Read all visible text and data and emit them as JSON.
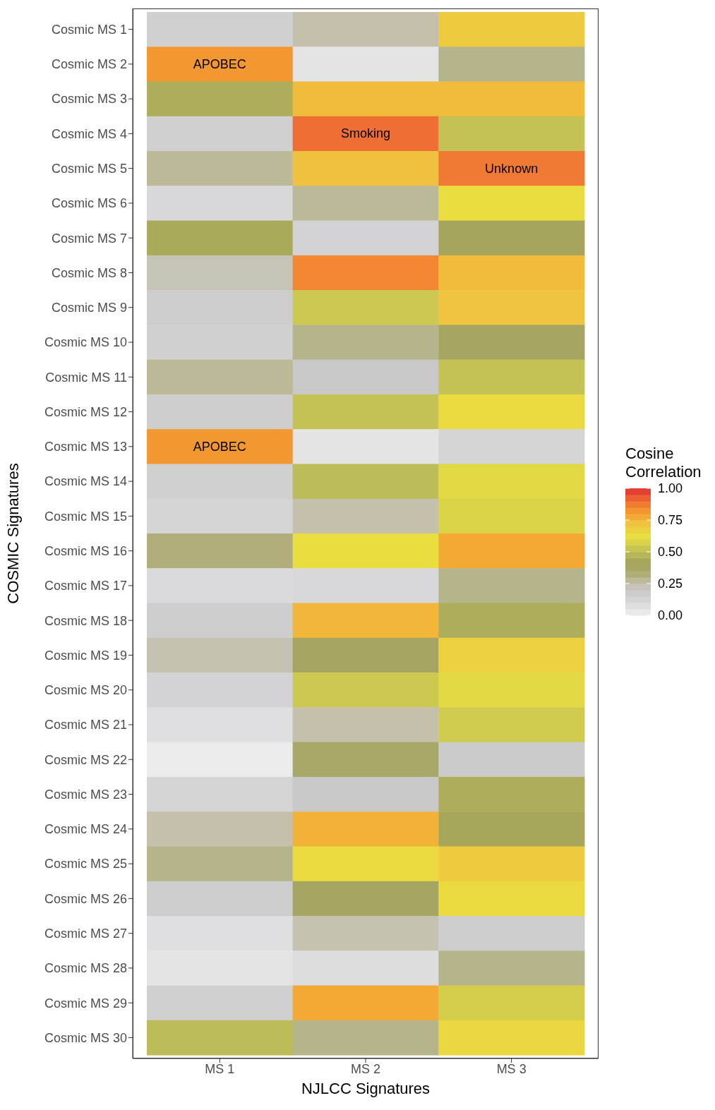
{
  "chart_data": {
    "type": "heatmap",
    "xlabel": "NJLCC Signatures",
    "ylabel": "COSMIC Signatures",
    "clabel": "Cosine Correlation",
    "categories": [
      "MS 1",
      "MS 2",
      "MS 3"
    ],
    "y_categories": [
      "Cosmic MS 1",
      "Cosmic MS 2",
      "Cosmic MS 3",
      "Cosmic MS 4",
      "Cosmic MS 5",
      "Cosmic MS 6",
      "Cosmic MS 7",
      "Cosmic MS 8",
      "Cosmic MS 9",
      "Cosmic MS 10",
      "Cosmic MS 11",
      "Cosmic MS 12",
      "Cosmic MS 13",
      "Cosmic MS 14",
      "Cosmic MS 15",
      "Cosmic MS 16",
      "Cosmic MS 17",
      "Cosmic MS 18",
      "Cosmic MS 19",
      "Cosmic MS 20",
      "Cosmic MS 21",
      "Cosmic MS 22",
      "Cosmic MS 23",
      "Cosmic MS 24",
      "Cosmic MS 25",
      "Cosmic MS 26",
      "Cosmic MS 27",
      "Cosmic MS 28",
      "Cosmic MS 29",
      "Cosmic MS 30"
    ],
    "cells": [
      [
        0.15,
        0.25,
        0.7
      ],
      [
        0.82,
        0.05,
        0.3
      ],
      [
        0.45,
        0.74,
        0.74
      ],
      [
        0.15,
        0.9,
        0.52
      ],
      [
        0.28,
        0.73,
        0.88
      ],
      [
        0.1,
        0.28,
        0.64
      ],
      [
        0.44,
        0.13,
        0.41
      ],
      [
        0.23,
        0.85,
        0.74
      ],
      [
        0.17,
        0.54,
        0.72
      ],
      [
        0.15,
        0.3,
        0.38
      ],
      [
        0.28,
        0.2,
        0.52
      ],
      [
        0.17,
        0.52,
        0.65
      ],
      [
        0.82,
        0.05,
        0.12
      ],
      [
        0.15,
        0.5,
        0.6
      ],
      [
        0.12,
        0.25,
        0.58
      ],
      [
        0.32,
        0.64,
        0.78
      ],
      [
        0.09,
        0.1,
        0.3
      ],
      [
        0.17,
        0.75,
        0.45
      ],
      [
        0.24,
        0.39,
        0.68
      ],
      [
        0.13,
        0.54,
        0.6
      ],
      [
        0.07,
        0.25,
        0.55
      ],
      [
        0.02,
        0.35,
        0.18
      ],
      [
        0.12,
        0.2,
        0.45
      ],
      [
        0.25,
        0.76,
        0.43
      ],
      [
        0.3,
        0.65,
        0.7
      ],
      [
        0.17,
        0.38,
        0.65
      ],
      [
        0.07,
        0.24,
        0.17
      ],
      [
        0.05,
        0.08,
        0.3
      ],
      [
        0.15,
        0.78,
        0.56
      ],
      [
        0.5,
        0.3,
        0.66
      ]
    ],
    "cell_labels": [
      [
        null,
        null,
        null
      ],
      [
        "APOBEC",
        null,
        null
      ],
      [
        null,
        null,
        null
      ],
      [
        null,
        "Smoking",
        null
      ],
      [
        null,
        null,
        "Unknown"
      ],
      [
        null,
        null,
        null
      ],
      [
        null,
        null,
        null
      ],
      [
        null,
        null,
        null
      ],
      [
        null,
        null,
        null
      ],
      [
        null,
        null,
        null
      ],
      [
        null,
        null,
        null
      ],
      [
        null,
        null,
        null
      ],
      [
        "APOBEC",
        null,
        null
      ],
      [
        null,
        null,
        null
      ],
      [
        null,
        null,
        null
      ],
      [
        null,
        null,
        null
      ],
      [
        null,
        null,
        null
      ],
      [
        null,
        null,
        null
      ],
      [
        null,
        null,
        null
      ],
      [
        null,
        null,
        null
      ],
      [
        null,
        null,
        null
      ],
      [
        null,
        null,
        null
      ],
      [
        null,
        null,
        null
      ],
      [
        null,
        null,
        null
      ],
      [
        null,
        null,
        null
      ],
      [
        null,
        null,
        null
      ],
      [
        null,
        null,
        null
      ],
      [
        null,
        null,
        null
      ],
      [
        null,
        null,
        null
      ],
      [
        null,
        null,
        null
      ]
    ],
    "clim": [
      0,
      1
    ],
    "cticks": [
      {
        "value": 0,
        "label": "0.00"
      },
      {
        "value": 0.25,
        "label": "0.25"
      },
      {
        "value": 0.5,
        "label": "0.50"
      },
      {
        "value": 0.75,
        "label": "0.75"
      },
      {
        "value": 1,
        "label": "1.00"
      }
    ]
  }
}
